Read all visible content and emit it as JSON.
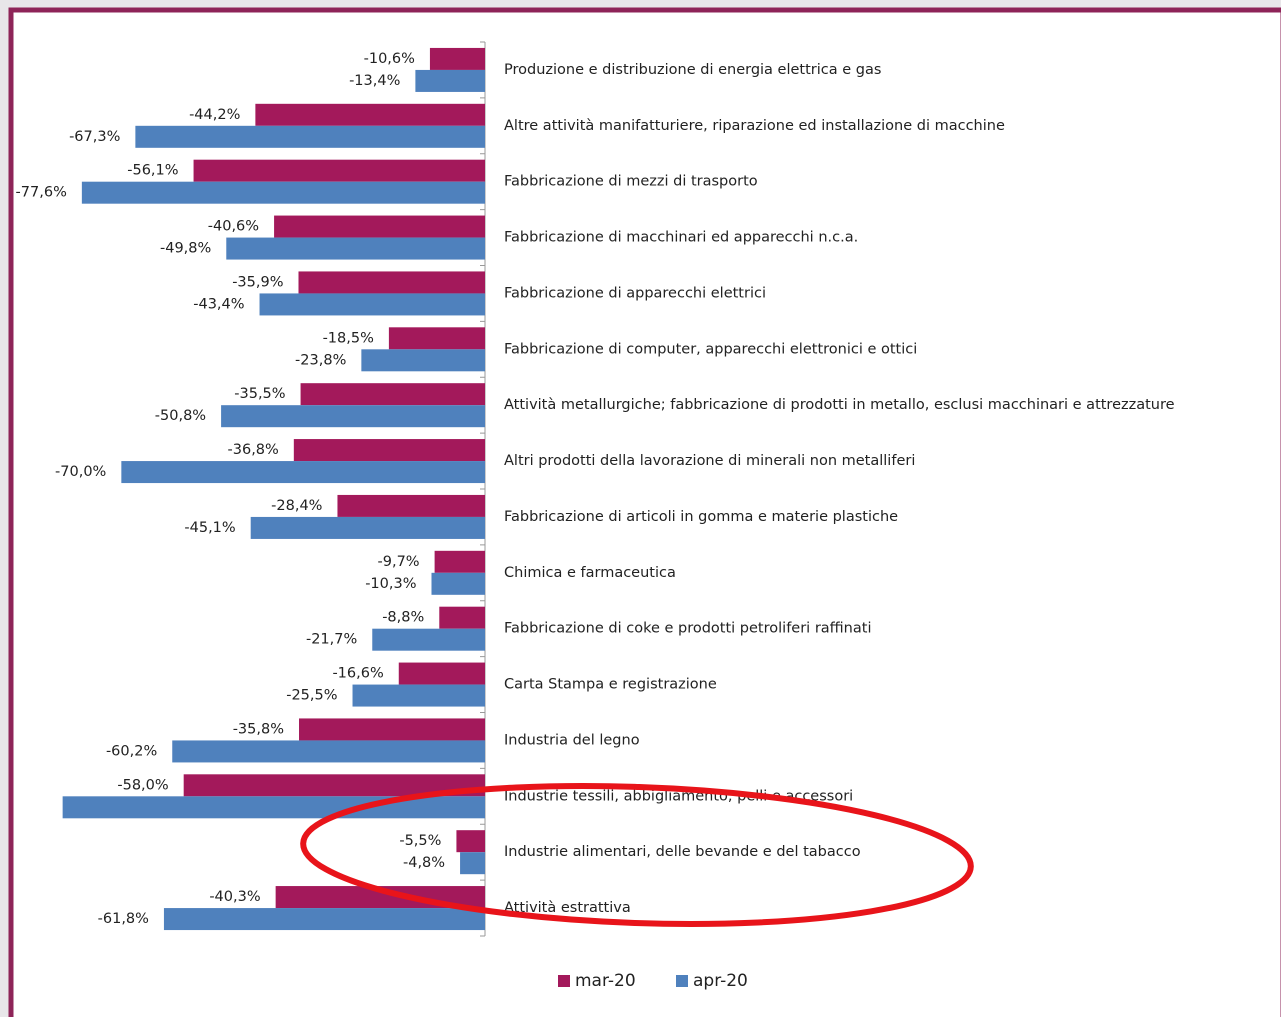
{
  "chart_data": {
    "type": "bar",
    "orientation": "horizontal",
    "categories": [
      "Produzione e distribuzione di energia elettrica e gas",
      "Altre attività manifatturiere, riparazione ed installazione di macchine",
      "Fabbricazione di mezzi di trasporto",
      "Fabbricazione di macchinari ed apparecchi n.c.a.",
      "Fabbricazione di apparecchi elettrici",
      "Fabbricazione di computer, apparecchi elettronici e ottici",
      "Attività metallurgiche; fabbricazione di prodotti in metallo, esclusi macchinari e attrezzature",
      "Altri prodotti della lavorazione di minerali non metalliferi",
      "Fabbricazione di articoli in gomma e materie plastiche",
      "Chimica e farmaceutica",
      "Fabbricazione di coke e prodotti petroliferi raffinati",
      "Carta Stampa e registrazione",
      "Industria del legno",
      "Industrie tessili, abbigliamento, pelli e accessori",
      "Industrie alimentari, delle bevande e del tabacco",
      "Attività estrattiva"
    ],
    "series": [
      {
        "name": "mar-20",
        "color": "#a3195b",
        "values": [
          -10.6,
          -44.2,
          -56.1,
          -40.6,
          -35.9,
          -18.5,
          -35.5,
          -36.8,
          -28.4,
          -9.7,
          -8.8,
          -16.6,
          -35.8,
          -58.0,
          -5.5,
          -40.3
        ],
        "value_labels": [
          "-10,6%",
          "-44,2%",
          "-56,1%",
          "-40,6%",
          "-35,9%",
          "-18,5%",
          "-35,5%",
          "-36,8%",
          "-28,4%",
          "-9,7%",
          "-8,8%",
          "-16,6%",
          "-35,8%",
          "-58,0%",
          "-5,5%",
          "-40,3%"
        ]
      },
      {
        "name": "apr-20",
        "color": "#4f81bd",
        "values": [
          -13.4,
          -67.3,
          -77.6,
          -49.8,
          -43.4,
          -23.8,
          -50.8,
          -70.0,
          -45.1,
          -10.3,
          -21.7,
          -25.5,
          -60.2,
          -81.3,
          -4.8,
          -61.8
        ],
        "value_labels": [
          "-13,4%",
          "-67,3%",
          "-77,6%",
          "-49,8%",
          "-43,4%",
          "-23,8%",
          "-50,8%",
          "-70,0%",
          "-45,1%",
          "-10,3%",
          "-21,7%",
          "-25,5%",
          "-60,2%",
          null,
          "-4,8%",
          "-61,8%"
        ]
      }
    ],
    "xlim": [
      -82,
      0
    ]
  }
}
